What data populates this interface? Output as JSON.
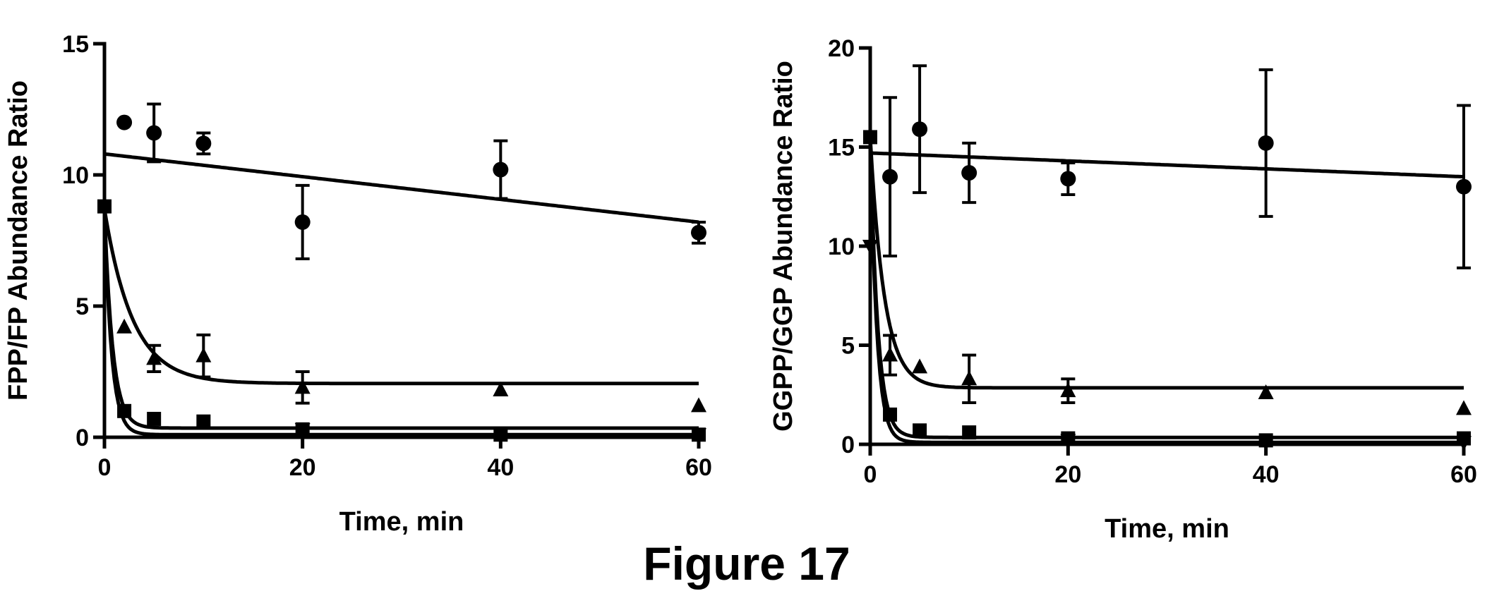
{
  "caption": "Figure 17",
  "chart_data": [
    {
      "type": "scatter",
      "title": "",
      "xlabel": "Time, min",
      "ylabel": "FPP/FP Abundance Ratio",
      "xlim": [
        0,
        60
      ],
      "ylim": [
        0,
        15
      ],
      "xticks": [
        0,
        20,
        40,
        60
      ],
      "yticks": [
        0,
        5,
        10,
        15
      ],
      "grid": false,
      "legend": "none",
      "series": [
        {
          "marker": "circle",
          "x": [
            2,
            5,
            10,
            20,
            40,
            60
          ],
          "y": [
            12.0,
            11.6,
            11.2,
            8.2,
            10.2,
            7.8
          ],
          "err": [
            0,
            1.1,
            0.4,
            1.4,
            1.1,
            0.4
          ],
          "fit": {
            "kind": "linear",
            "y0": 10.8,
            "y60": 8.2
          }
        },
        {
          "marker": "triangle",
          "x": [
            2,
            5,
            10,
            20,
            40,
            60
          ],
          "y": [
            4.2,
            3.0,
            3.1,
            1.9,
            1.8,
            1.2
          ],
          "err": [
            0,
            0.5,
            0.8,
            0.6,
            0,
            0
          ],
          "fit": {
            "kind": "exp",
            "y0": 8.7,
            "plateau": 2.05,
            "k": 0.35
          }
        },
        {
          "marker": "square",
          "x": [
            0,
            2,
            5,
            10,
            20,
            40,
            60
          ],
          "y": [
            8.8,
            1.0,
            0.7,
            0.6,
            0.3,
            0.1,
            0.1
          ],
          "err": [
            0,
            0,
            0,
            0,
            0,
            0,
            0
          ],
          "fit": {
            "kind": "exp",
            "y0": 8.7,
            "plateau": 0.35,
            "k": 1.2
          }
        },
        {
          "marker": "triangle-down",
          "x": [
            20,
            40,
            60
          ],
          "y": [
            0.3,
            0.1,
            0.1
          ],
          "err": [
            0,
            0,
            0
          ],
          "fit": {
            "kind": "exp",
            "y0": 8.7,
            "plateau": 0.1,
            "k": 1.4
          }
        }
      ]
    },
    {
      "type": "scatter",
      "title": "",
      "xlabel": "Time, min",
      "ylabel": "GGPP/GGP Abundance Ratio",
      "xlim": [
        0,
        60
      ],
      "ylim": [
        0,
        20
      ],
      "xticks": [
        0,
        20,
        40,
        60
      ],
      "yticks": [
        0,
        5,
        10,
        15,
        20
      ],
      "grid": false,
      "legend": "none",
      "series": [
        {
          "marker": "circle",
          "x": [
            2,
            5,
            10,
            20,
            40,
            60
          ],
          "y": [
            13.5,
            15.9,
            13.7,
            13.4,
            15.2,
            13.0
          ],
          "err": [
            4.0,
            3.2,
            1.5,
            0.8,
            3.7,
            4.1
          ],
          "fit": {
            "kind": "linear",
            "y0": 14.7,
            "y60": 13.5
          }
        },
        {
          "marker": "triangle",
          "x": [
            2,
            5,
            10,
            20,
            40,
            60
          ],
          "y": [
            4.5,
            3.9,
            3.3,
            2.7,
            2.6,
            1.8
          ],
          "err": [
            1.0,
            0,
            1.2,
            0.6,
            0,
            0
          ],
          "fit": {
            "kind": "exp",
            "y0": 15.5,
            "plateau": 2.85,
            "k": 0.7
          }
        },
        {
          "marker": "square",
          "x": [
            0,
            2,
            5,
            10,
            20,
            40,
            60
          ],
          "y": [
            15.5,
            1.5,
            0.7,
            0.6,
            0.3,
            0.2,
            0.3
          ],
          "err": [
            0,
            0,
            0,
            0,
            0,
            0,
            0
          ],
          "fit": {
            "kind": "exp",
            "y0": 15.5,
            "plateau": 0.35,
            "k": 1.3
          }
        },
        {
          "marker": "triangle-down",
          "x": [
            0,
            20,
            40,
            60
          ],
          "y": [
            10.0,
            0.2,
            0.1,
            0.1
          ],
          "err": [
            0,
            0,
            0,
            0
          ],
          "fit": {
            "kind": "exp",
            "y0": 15.5,
            "plateau": 0.1,
            "k": 1.5
          }
        }
      ]
    }
  ]
}
